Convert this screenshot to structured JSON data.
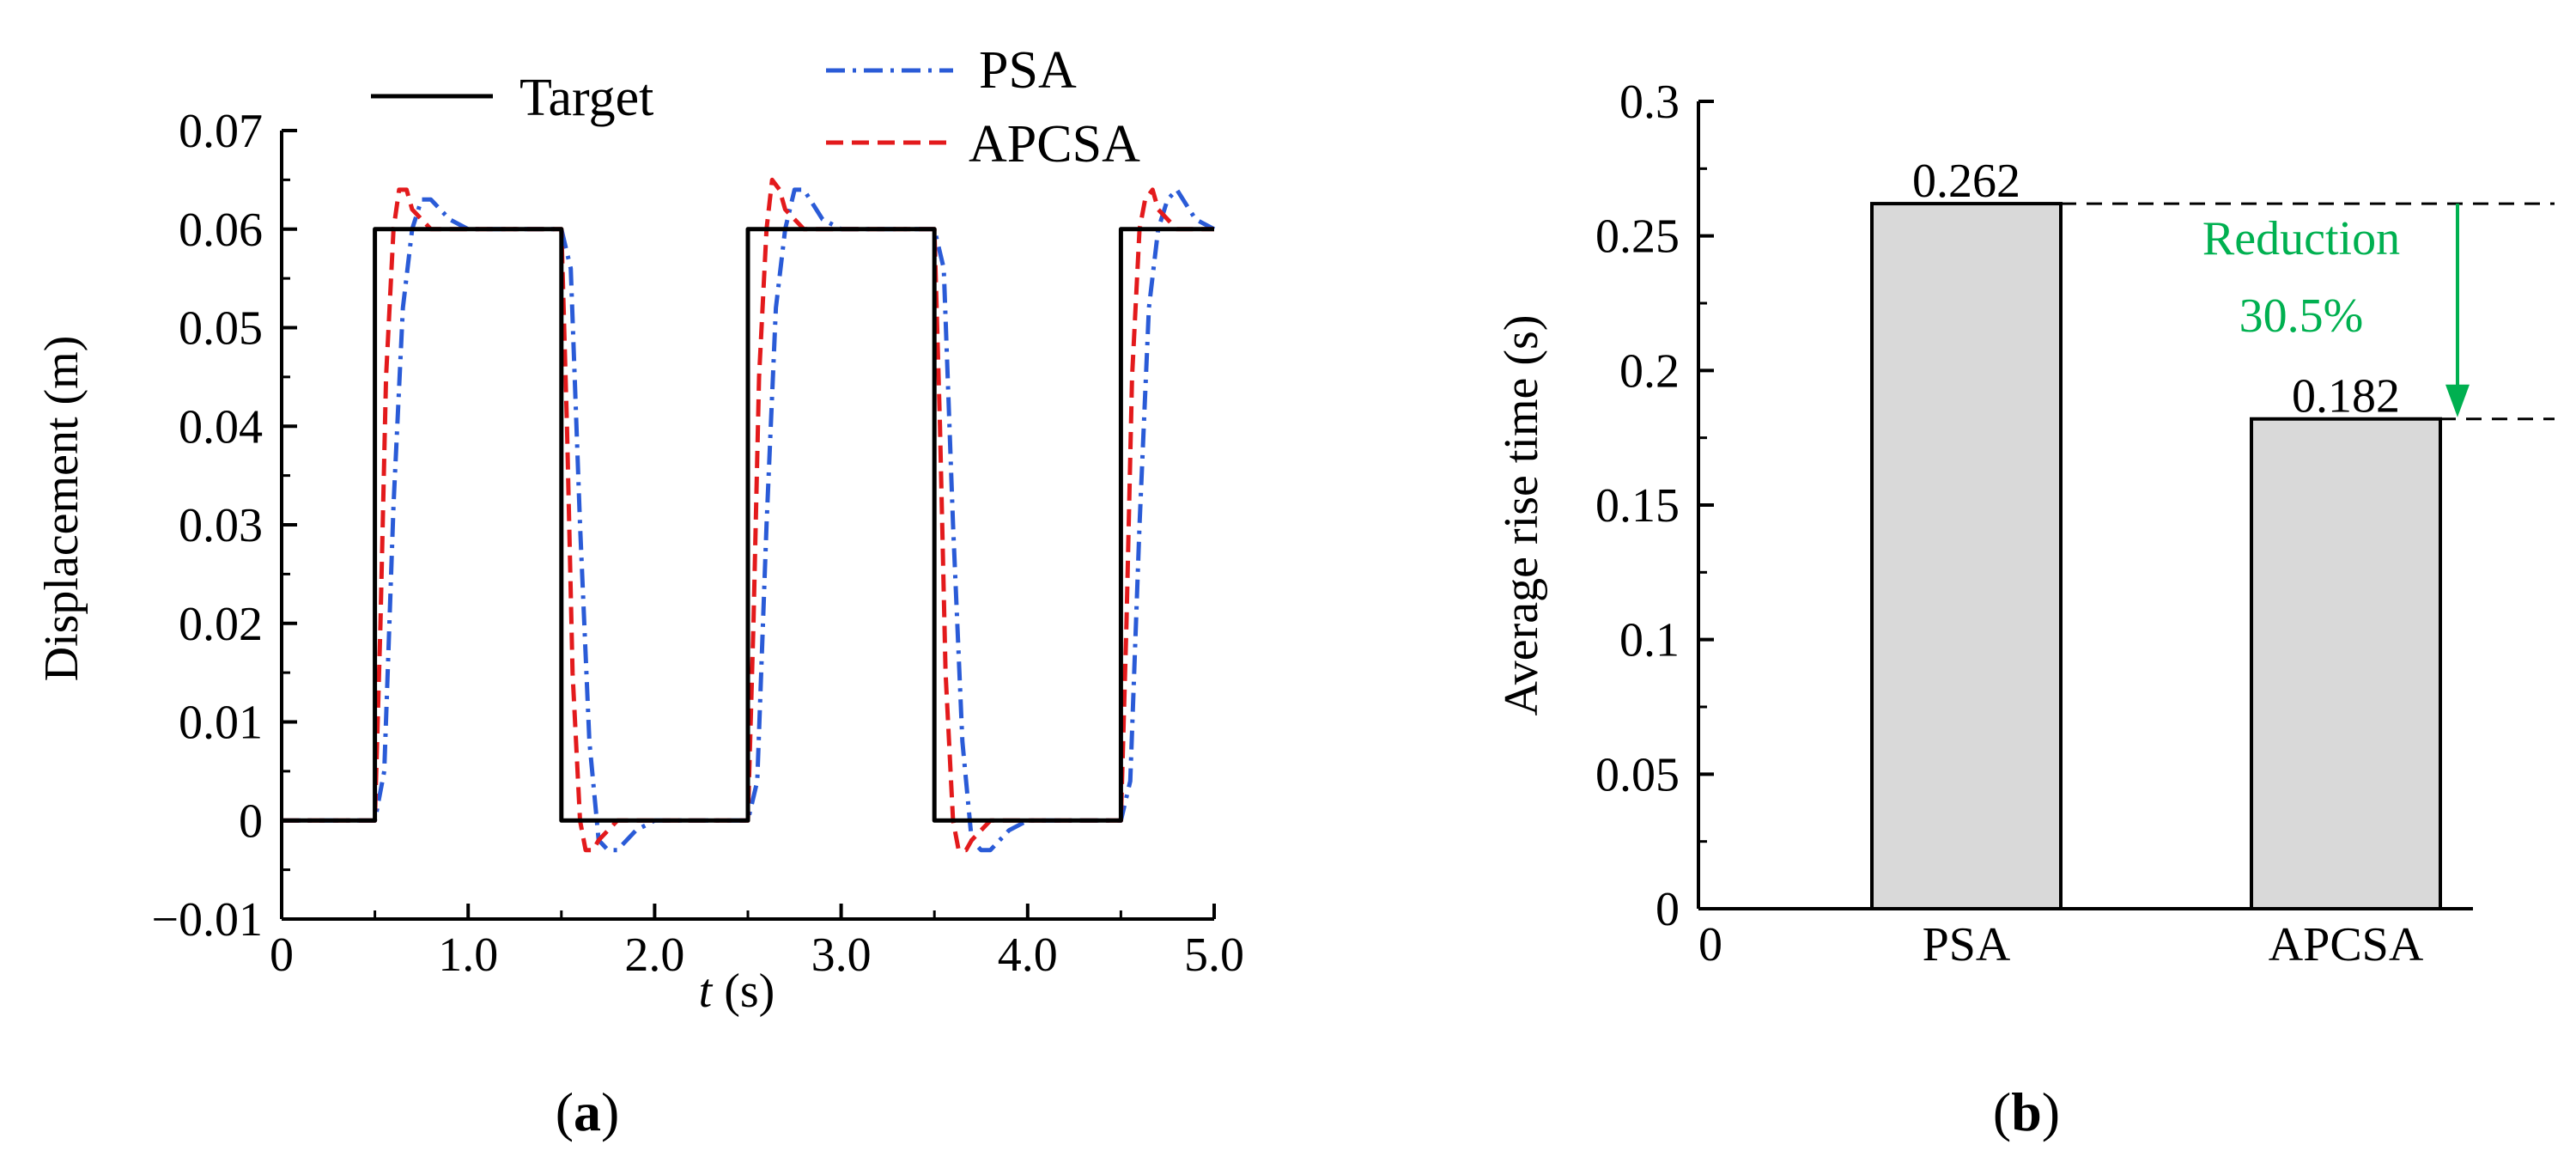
{
  "chart_data": [
    {
      "type": "line",
      "panel_label": "a",
      "xlabel": "t (s)",
      "xlabel_italic_part": "t",
      "xlabel_rest": " (s)",
      "ylabel": "Displacement (m)",
      "xlim": [
        0,
        5.0
      ],
      "ylim": [
        -0.01,
        0.07
      ],
      "x_ticks": [
        0,
        1.0,
        2.0,
        3.0,
        4.0,
        5.0
      ],
      "x_tick_labels": [
        "0",
        "1.0",
        "2.0",
        "3.0",
        "4.0",
        "5.0"
      ],
      "y_ticks": [
        -0.01,
        0,
        0.01,
        0.02,
        0.03,
        0.04,
        0.05,
        0.06,
        0.07
      ],
      "y_tick_labels": [
        "−0.01",
        "0",
        "0.01",
        "0.02",
        "0.03",
        "0.04",
        "0.05",
        "0.06",
        "0.07"
      ],
      "legend": [
        "Target",
        "PSA",
        "APCSA"
      ],
      "grid": false,
      "series": [
        {
          "name": "Target",
          "color": "#000000",
          "style": "solid",
          "x": [
            0,
            0.5,
            0.5,
            1.5,
            1.5,
            2.5,
            2.5,
            3.5,
            3.5,
            4.5,
            4.5,
            5.0
          ],
          "y": [
            0,
            0,
            0.06,
            0.06,
            0,
            0,
            0.06,
            0.06,
            0,
            0,
            0.06,
            0.06
          ]
        },
        {
          "name": "PSA",
          "color": "#2a5bd7",
          "style": "dashdot",
          "x": [
            0,
            0.5,
            0.55,
            0.6,
            0.65,
            0.7,
            0.75,
            0.8,
            0.9,
            1.0,
            1.5,
            1.55,
            1.6,
            1.65,
            1.7,
            1.75,
            1.8,
            1.9,
            2.0,
            2.5,
            2.55,
            2.6,
            2.65,
            2.7,
            2.75,
            2.8,
            2.9,
            3.0,
            3.5,
            3.55,
            3.6,
            3.65,
            3.7,
            3.75,
            3.8,
            3.9,
            4.0,
            4.5,
            4.55,
            4.6,
            4.65,
            4.7,
            4.75,
            4.8,
            4.9,
            5.0
          ],
          "y": [
            0,
            0,
            0.005,
            0.032,
            0.052,
            0.06,
            0.063,
            0.063,
            0.061,
            0.06,
            0.06,
            0.056,
            0.03,
            0.008,
            -0.002,
            -0.003,
            -0.003,
            -0.001,
            0,
            0,
            0.004,
            0.03,
            0.052,
            0.06,
            0.064,
            0.064,
            0.061,
            0.06,
            0.06,
            0.056,
            0.03,
            0.008,
            -0.002,
            -0.003,
            -0.003,
            -0.001,
            0,
            0,
            0.004,
            0.03,
            0.052,
            0.06,
            0.063,
            0.064,
            0.061,
            0.06
          ]
        },
        {
          "name": "APCSA",
          "color": "#e31a1c",
          "style": "dashed",
          "x": [
            0,
            0.5,
            0.53,
            0.56,
            0.6,
            0.63,
            0.67,
            0.7,
            0.8,
            0.9,
            1.5,
            1.53,
            1.56,
            1.6,
            1.63,
            1.67,
            1.7,
            1.8,
            1.9,
            2.5,
            2.53,
            2.56,
            2.6,
            2.63,
            2.67,
            2.7,
            2.8,
            2.9,
            3.5,
            3.53,
            3.56,
            3.6,
            3.63,
            3.67,
            3.7,
            3.8,
            3.9,
            4.5,
            4.53,
            4.56,
            4.6,
            4.63,
            4.67,
            4.7,
            4.8,
            4.9,
            5.0
          ],
          "y": [
            0,
            0,
            0.02,
            0.045,
            0.06,
            0.064,
            0.064,
            0.062,
            0.06,
            0.06,
            0.06,
            0.04,
            0.015,
            0,
            -0.003,
            -0.003,
            -0.002,
            0,
            0,
            0,
            0.02,
            0.045,
            0.06,
            0.065,
            0.064,
            0.062,
            0.06,
            0.06,
            0.06,
            0.04,
            0.015,
            0,
            -0.003,
            -0.003,
            -0.002,
            0,
            0,
            0,
            0.02,
            0.045,
            0.06,
            0.063,
            0.064,
            0.062,
            0.06,
            0.06,
            0.06
          ]
        }
      ]
    },
    {
      "type": "bar",
      "panel_label": "b",
      "ylabel": "Average rise time (s)",
      "xlabel": "",
      "x_origin_label": "0",
      "ylim": [
        0,
        0.3
      ],
      "y_ticks": [
        0,
        0.05,
        0.1,
        0.15,
        0.2,
        0.25,
        0.3
      ],
      "y_tick_labels": [
        "0",
        "0.05",
        "0.1",
        "0.15",
        "0.2",
        "0.25",
        "0.3"
      ],
      "categories": [
        "PSA",
        "APCSA"
      ],
      "values": [
        0.262,
        0.182
      ],
      "value_labels": [
        "0.262",
        "0.182"
      ],
      "bar_color": "#d9d9d9",
      "grid": false,
      "annotation": {
        "line1": "Reduction",
        "line2": "30.5%",
        "color": "#00b050"
      }
    }
  ]
}
